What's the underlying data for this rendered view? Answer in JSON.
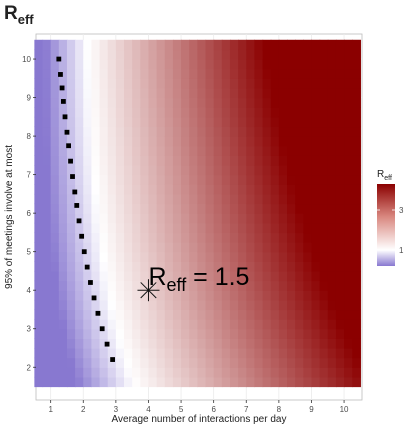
{
  "chart_data": {
    "type": "heatmap",
    "title": "R",
    "title_sub": "eff",
    "xlabel": "Average number of interactions per day",
    "ylabel": "95% of meetings involve at most",
    "xlim": [
      0.55,
      10.55
    ],
    "ylim": [
      1.15,
      10.65
    ],
    "x_ticks": [
      1,
      2,
      3,
      4,
      5,
      6,
      7,
      8,
      9,
      10
    ],
    "y_ticks": [
      2,
      3,
      4,
      5,
      6,
      7,
      8,
      9,
      10
    ],
    "grid": true,
    "heat_extent": {
      "x": [
        0.5,
        10.5
      ],
      "y": [
        1.5,
        10.5
      ]
    },
    "color_scale": {
      "low": "#8878d0",
      "mid": "#ffffff",
      "high": "#8b0000",
      "midpoint": 1,
      "min": 0.2,
      "max": 4.3
    },
    "legend": {
      "title": "R",
      "title_sub": "eff",
      "position": "right",
      "ticks": [
        1,
        3
      ]
    },
    "threshold_curve": {
      "name": "Reff = 1 boundary",
      "points": [
        {
          "x": 1.25,
          "y": 10.0
        },
        {
          "x": 1.3,
          "y": 9.6
        },
        {
          "x": 1.35,
          "y": 9.25
        },
        {
          "x": 1.39,
          "y": 8.9
        },
        {
          "x": 1.44,
          "y": 8.5
        },
        {
          "x": 1.5,
          "y": 8.1
        },
        {
          "x": 1.55,
          "y": 7.75
        },
        {
          "x": 1.61,
          "y": 7.35
        },
        {
          "x": 1.67,
          "y": 6.95
        },
        {
          "x": 1.74,
          "y": 6.55
        },
        {
          "x": 1.8,
          "y": 6.2
        },
        {
          "x": 1.87,
          "y": 5.8
        },
        {
          "x": 1.95,
          "y": 5.4
        },
        {
          "x": 2.03,
          "y": 5.0
        },
        {
          "x": 2.12,
          "y": 4.6
        },
        {
          "x": 2.22,
          "y": 4.2
        },
        {
          "x": 2.33,
          "y": 3.8
        },
        {
          "x": 2.45,
          "y": 3.4
        },
        {
          "x": 2.58,
          "y": 3.0
        },
        {
          "x": 2.73,
          "y": 2.6
        },
        {
          "x": 2.9,
          "y": 2.2
        }
      ]
    },
    "marker": {
      "x": 4,
      "y": 4,
      "label": "R",
      "label_sub": "eff",
      "label_rest": " = 1.5"
    }
  }
}
